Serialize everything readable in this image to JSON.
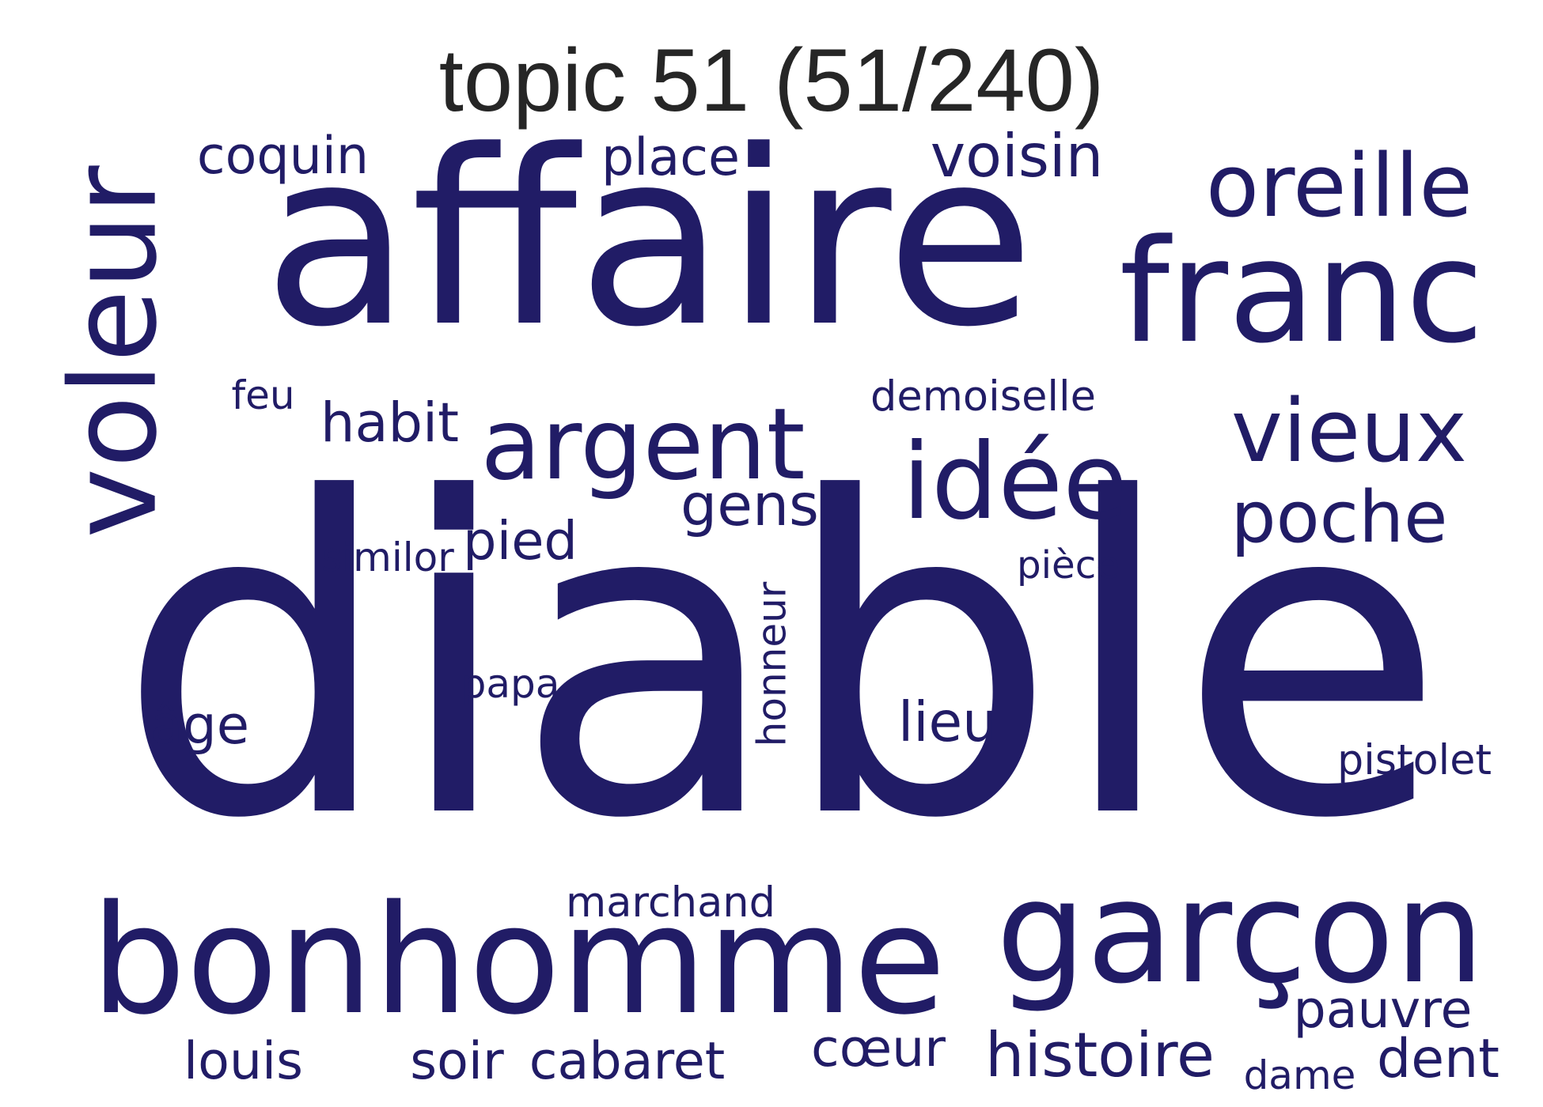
{
  "title": "topic 51 (51/240)",
  "word_color": "#211c66",
  "words": [
    {
      "text": "diable",
      "vertical": false
    },
    {
      "text": "affaire",
      "vertical": false
    },
    {
      "text": "bonhomme",
      "vertical": false
    },
    {
      "text": "garçon",
      "vertical": false
    },
    {
      "text": "franc",
      "vertical": false
    },
    {
      "text": "voleur",
      "vertical": true
    },
    {
      "text": "oreille",
      "vertical": false
    },
    {
      "text": "vieux",
      "vertical": false
    },
    {
      "text": "idée",
      "vertical": false
    },
    {
      "text": "argent",
      "vertical": false
    },
    {
      "text": "poche",
      "vertical": false
    },
    {
      "text": "histoire",
      "vertical": false
    },
    {
      "text": "pauvre",
      "vertical": false
    },
    {
      "text": "voisin",
      "vertical": false
    },
    {
      "text": "place",
      "vertical": false
    },
    {
      "text": "coquin",
      "vertical": false
    },
    {
      "text": "habit",
      "vertical": false
    },
    {
      "text": "gens",
      "vertical": false
    },
    {
      "text": "pied",
      "vertical": false
    },
    {
      "text": "honneur",
      "vertical": true
    },
    {
      "text": "lieu",
      "vertical": false
    },
    {
      "text": "âge",
      "vertical": false
    },
    {
      "text": "cabaret",
      "vertical": false
    },
    {
      "text": "soir",
      "vertical": false
    },
    {
      "text": "louis",
      "vertical": false
    },
    {
      "text": "dent",
      "vertical": false
    },
    {
      "text": "cœur",
      "vertical": false
    },
    {
      "text": "marchand",
      "vertical": false
    },
    {
      "text": "pistolet",
      "vertical": false
    },
    {
      "text": "demoiselle",
      "vertical": false
    },
    {
      "text": "pièce",
      "vertical": false
    },
    {
      "text": "similor",
      "vertical": false
    },
    {
      "text": "papa",
      "vertical": false
    },
    {
      "text": "feu",
      "vertical": false
    },
    {
      "text": "dame",
      "vertical": false
    }
  ]
}
